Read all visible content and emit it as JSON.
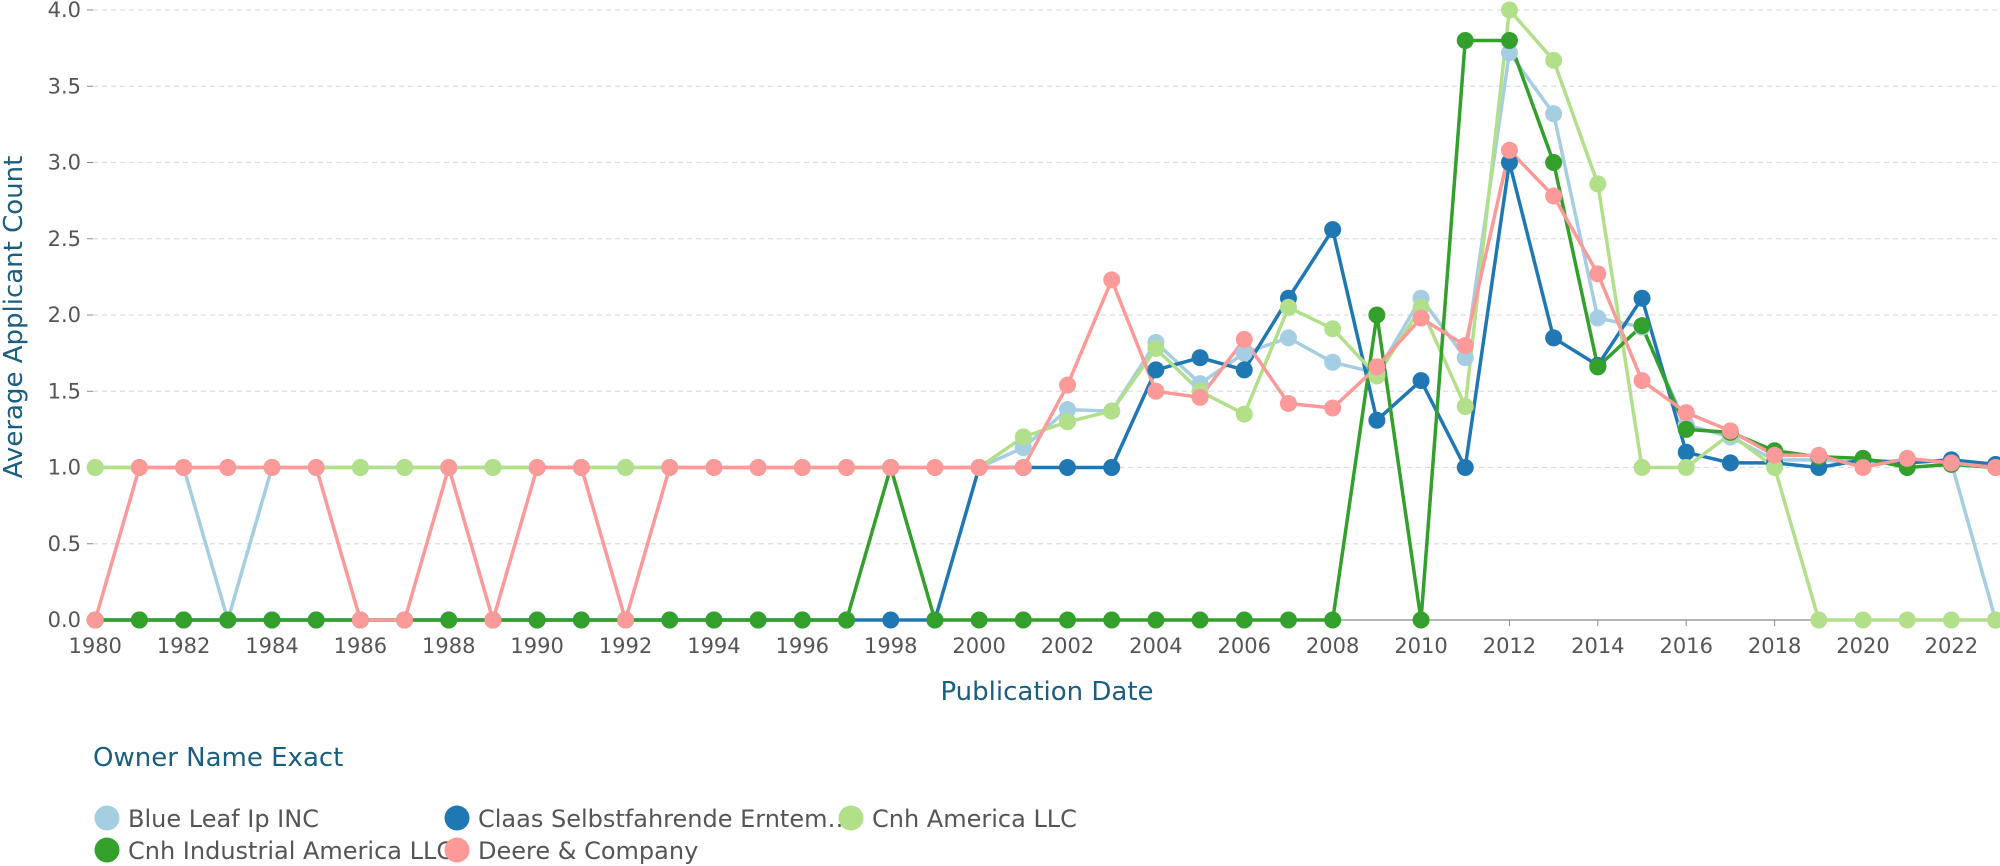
{
  "chart_data": {
    "type": "line",
    "title": "",
    "xlabel": "Publication Date",
    "ylabel": "Average Applicant Count",
    "xlim": [
      1980,
      2023
    ],
    "ylim": [
      0,
      4
    ],
    "x_ticks": [
      "1980",
      "1982",
      "1984",
      "1986",
      "1988",
      "1990",
      "1992",
      "1994",
      "1996",
      "1998",
      "2000",
      "2002",
      "2004",
      "2006",
      "2008",
      "2010",
      "2012",
      "2014",
      "2016",
      "2018",
      "2020",
      "2022"
    ],
    "y_ticks": [
      "0.0",
      "0.5",
      "1.0",
      "1.5",
      "2.0",
      "2.5",
      "3.0",
      "3.5",
      "4.0"
    ],
    "grid": "horizontal dashed",
    "legend": {
      "title": "Owner Name Exact",
      "placement": "bottom-left"
    },
    "x": [
      1980,
      1981,
      1982,
      1983,
      1984,
      1985,
      1986,
      1987,
      1988,
      1989,
      1990,
      1991,
      1992,
      1993,
      1994,
      1995,
      1996,
      1997,
      1998,
      1999,
      2000,
      2001,
      2002,
      2003,
      2004,
      2005,
      2006,
      2007,
      2008,
      2009,
      2010,
      2011,
      2012,
      2013,
      2014,
      2015,
      2016,
      2017,
      2018,
      2019,
      2020,
      2021,
      2022,
      2023
    ],
    "series": [
      {
        "name": "Blue Leaf Ip INC",
        "legend_label": "Blue Leaf Ip INC",
        "color": "#a6cee3",
        "values": [
          1,
          1,
          1,
          0,
          1,
          1,
          1,
          1,
          1,
          1,
          1,
          1,
          1,
          1,
          1,
          1,
          1,
          1,
          1,
          1,
          1,
          1.13,
          1.38,
          1.37,
          1.82,
          1.55,
          1.75,
          1.85,
          1.69,
          1.62,
          2.11,
          1.72,
          3.72,
          3.32,
          1.98,
          1.92,
          1.28,
          1.2,
          1.05,
          1.05,
          1.03,
          1.05,
          1.03,
          0
        ]
      },
      {
        "name": "Claas Selbstfahrende Erntemaschinen GmbH",
        "legend_label": "Claas Selbstfahrende Erntem…",
        "color": "#1f78b4",
        "values": [
          0,
          0,
          0,
          0,
          0,
          0,
          0,
          0,
          0,
          0,
          0,
          0,
          0,
          0,
          0,
          0,
          0,
          0,
          0,
          0,
          1,
          1,
          1,
          1,
          1.64,
          1.72,
          1.64,
          2.11,
          2.56,
          1.31,
          1.57,
          1,
          3,
          1.85,
          1.67,
          2.11,
          1.1,
          1.03,
          1.03,
          1,
          1.05,
          1.03,
          1.05,
          1.02
        ]
      },
      {
        "name": "Cnh America LLC",
        "legend_label": "Cnh America LLC",
        "color": "#b2df8a",
        "values": [
          1,
          1,
          1,
          1,
          1,
          1,
          1,
          1,
          1,
          1,
          1,
          1,
          1,
          1,
          1,
          1,
          1,
          1,
          1,
          1,
          1,
          1.2,
          1.3,
          1.37,
          1.78,
          1.5,
          1.35,
          2.05,
          1.91,
          1.6,
          2.05,
          1.4,
          4,
          3.67,
          2.86,
          1,
          1,
          1.22,
          1,
          0,
          0,
          0,
          0,
          0
        ]
      },
      {
        "name": "Cnh Industrial America LLC",
        "legend_label": "Cnh Industrial America LLC",
        "color": "#33a02c",
        "values": [
          0,
          0,
          0,
          0,
          0,
          0,
          0,
          0,
          0,
          0,
          0,
          0,
          0,
          0,
          0,
          0,
          0,
          0,
          1,
          0,
          0,
          0,
          0,
          0,
          0,
          0,
          0,
          0,
          0,
          2,
          0,
          3.8,
          3.8,
          3,
          1.66,
          1.93,
          1.25,
          1.23,
          1.11,
          1.07,
          1.06,
          1,
          1.02,
          1
        ]
      },
      {
        "name": "Deere & Company",
        "legend_label": "Deere & Company",
        "color": "#fb9a99",
        "values": [
          0,
          1,
          1,
          1,
          1,
          1,
          0,
          0,
          1,
          0,
          1,
          1,
          0,
          1,
          1,
          1,
          1,
          1,
          1,
          1,
          1,
          1,
          1.54,
          2.23,
          1.5,
          1.46,
          1.84,
          1.42,
          1.39,
          1.66,
          1.98,
          1.8,
          3.08,
          2.78,
          2.27,
          1.57,
          1.36,
          1.24,
          1.08,
          1.08,
          1,
          1.06,
          1.03,
          1
        ]
      }
    ]
  }
}
